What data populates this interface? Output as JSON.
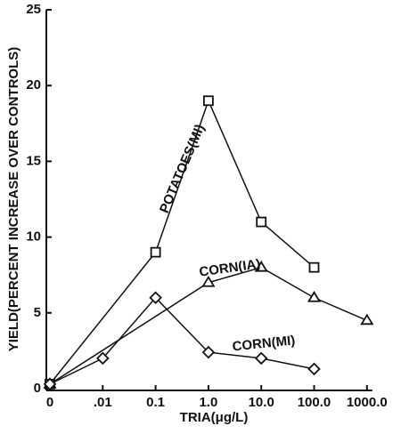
{
  "chart_data": {
    "type": "line",
    "x_label": "TRIA(μg/L)",
    "y_label": "YIELD(PERCENT INCREASE OVER CONTROLS)",
    "categories": [
      "0",
      ".01",
      "0.1",
      "1.0",
      "10.0",
      "100.0",
      "1000.0"
    ],
    "ylim": [
      0,
      25
    ],
    "yticks": [
      0,
      5,
      10,
      15,
      20,
      25
    ],
    "series": [
      {
        "name": "POTATOES(MI)",
        "color": "#111111",
        "marker": "square",
        "x": [
          "0",
          "0.1",
          "1.0",
          "10.0",
          "100.0"
        ],
        "values": [
          0.3,
          9,
          19,
          11,
          8
        ]
      },
      {
        "name": "CORN(IA)",
        "color": "#111111",
        "marker": "triangle",
        "x": [
          "0",
          "1.0",
          "10.0",
          "100.0",
          "1000.0"
        ],
        "values": [
          0.3,
          7,
          8,
          6,
          4.5
        ]
      },
      {
        "name": "CORN(MI)",
        "color": "#111111",
        "marker": "diamond",
        "x": [
          "0",
          ".01",
          "0.1",
          "1.0",
          "10.0",
          "100.0"
        ],
        "values": [
          0.3,
          2,
          6,
          2.4,
          2,
          1.3
        ]
      }
    ]
  }
}
